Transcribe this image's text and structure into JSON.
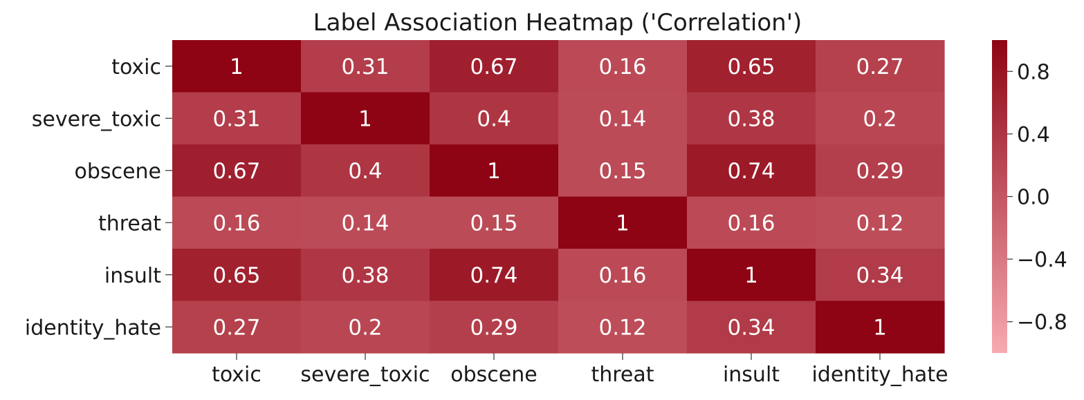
{
  "chart_data": {
    "type": "heatmap",
    "title": "Label Association Heatmap ('Correlation')",
    "xlabel": "",
    "ylabel": "",
    "rows": [
      "toxic",
      "severe_toxic",
      "obscene",
      "threat",
      "insult",
      "identity_hate"
    ],
    "columns": [
      "toxic",
      "severe_toxic",
      "obscene",
      "threat",
      "insult",
      "identity_hate"
    ],
    "values": [
      [
        1,
        0.31,
        0.67,
        0.16,
        0.65,
        0.27
      ],
      [
        0.31,
        1,
        0.4,
        0.14,
        0.38,
        0.2
      ],
      [
        0.67,
        0.4,
        1,
        0.15,
        0.74,
        0.29
      ],
      [
        0.16,
        0.14,
        0.15,
        1,
        0.16,
        0.12
      ],
      [
        0.65,
        0.38,
        0.74,
        0.16,
        1,
        0.34
      ],
      [
        0.27,
        0.2,
        0.29,
        0.12,
        0.34,
        1
      ]
    ],
    "annotations": true,
    "colorbar": {
      "vmin": -1,
      "vmax": 1,
      "ticks": [
        0.8,
        0.4,
        0.0,
        -0.4,
        -0.8
      ],
      "tick_labels": [
        "0.8",
        "0.4",
        "0.0",
        "−0.4",
        "−0.8"
      ],
      "color_low": "#f8aab1",
      "color_high": "#8e0414"
    },
    "annotation_color": "#ffffff"
  }
}
